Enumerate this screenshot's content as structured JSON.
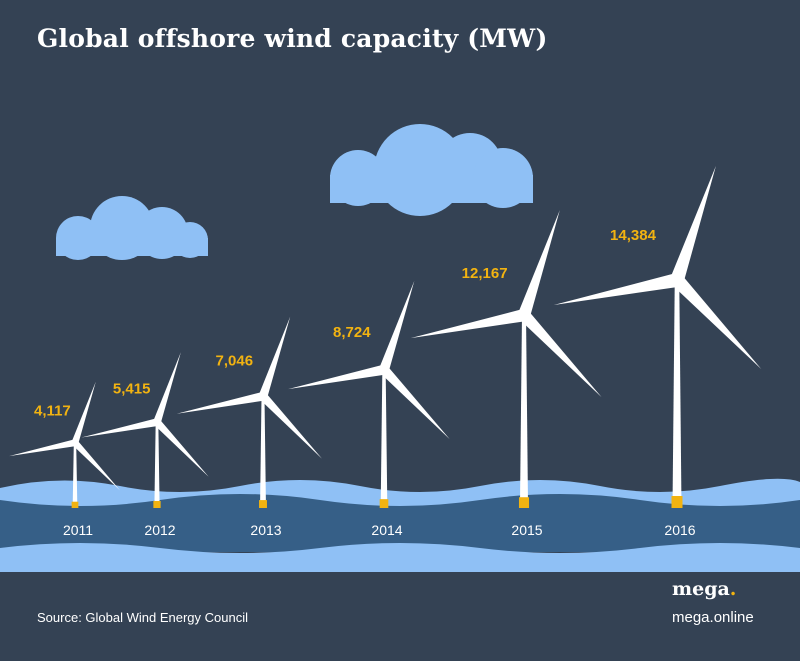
{
  "title": "Global offshore wind capacity (MW)",
  "source": "Source: Global Wind Energy Council",
  "brand": {
    "logo_text": "mega",
    "logo_dot": ".",
    "url": "mega.online"
  },
  "colors": {
    "background": "#344254",
    "sky_blue": "#8fc0f5",
    "deep_water": "#365f87",
    "value_label": "#f2b311",
    "turbine": "#ffffff",
    "base": "#f2b311"
  },
  "chart_data": {
    "type": "bar",
    "title": "Global offshore wind capacity (MW)",
    "categories": [
      "2011",
      "2012",
      "2013",
      "2014",
      "2015",
      "2016"
    ],
    "values": [
      4117,
      5415,
      7046,
      8724,
      12167,
      14384
    ],
    "value_labels": [
      "4,117",
      "5,415",
      "7,046",
      "8,724",
      "12,167",
      "14,384"
    ],
    "mark": "wind turbine height proportional to value",
    "xlabel": "",
    "ylabel": "",
    "grid": false,
    "legend": "none"
  }
}
